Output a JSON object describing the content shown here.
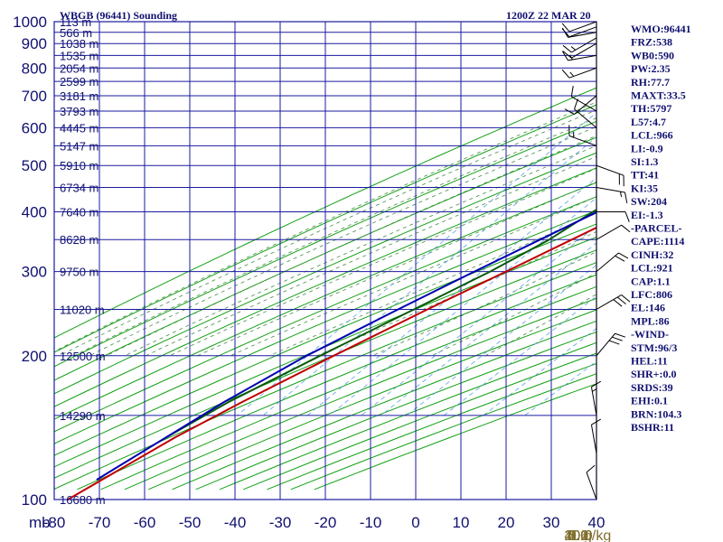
{
  "header": {
    "title": "WBGB (96441) Sounding",
    "valid_time": "1200Z 22 MAR 20"
  },
  "colors": {
    "grid": "#1a1aa0",
    "dry_adiabat": "#12a012",
    "moist_adiabat": "#4a8a4a",
    "mixing_ratio": "#5aa0e0",
    "temperature": "#c00000",
    "dewpoint": "#0a5a0a",
    "parcel": "#0000b0",
    "wind": "#000000",
    "mixing_label": "#807030"
  },
  "chart_data": {
    "type": "skew-t",
    "title": "WBGB (96441) Sounding",
    "pressure_unit_label": "mb",
    "pressure_range": [
      1000,
      100
    ],
    "temperature_range": [
      -80,
      40
    ],
    "pressure_ticks": [
      {
        "p": 100,
        "label": "100"
      },
      {
        "p": 200,
        "label": "200"
      },
      {
        "p": 300,
        "label": "300"
      },
      {
        "p": 400,
        "label": "400"
      },
      {
        "p": 500,
        "label": "500"
      },
      {
        "p": 600,
        "label": "600"
      },
      {
        "p": 700,
        "label": "700"
      },
      {
        "p": 800,
        "label": "800"
      },
      {
        "p": 900,
        "label": "900"
      },
      {
        "p": 1000,
        "label": "1000"
      }
    ],
    "temperature_ticks": [
      "-80",
      "-70",
      "-60",
      "-50",
      "-40",
      "-30",
      "-20",
      "-10",
      "0",
      "10",
      "20",
      "30",
      "40"
    ],
    "height_labels": [
      {
        "p": 100,
        "label": "16680 m"
      },
      {
        "p": 150,
        "label": "14290 m"
      },
      {
        "p": 200,
        "label": "12500 m"
      },
      {
        "p": 250,
        "label": "11020 m"
      },
      {
        "p": 300,
        "label": "9750 m"
      },
      {
        "p": 350,
        "label": "8628 m"
      },
      {
        "p": 400,
        "label": "7640 m"
      },
      {
        "p": 450,
        "label": "6734 m"
      },
      {
        "p": 500,
        "label": "5910 m"
      },
      {
        "p": 550,
        "label": "5147 m"
      },
      {
        "p": 600,
        "label": "4445 m"
      },
      {
        "p": 650,
        "label": "3793 m"
      },
      {
        "p": 700,
        "label": "3181 m"
      },
      {
        "p": 750,
        "label": "2599 m"
      },
      {
        "p": 800,
        "label": "2054 m"
      },
      {
        "p": 850,
        "label": "1535 m"
      },
      {
        "p": 900,
        "label": "1038 m"
      },
      {
        "p": 950,
        "label": "566 m"
      },
      {
        "p": 1000,
        "label": "113 m"
      }
    ],
    "mixing_ratio_labels": [
      "0.1",
      "0.2",
      "0.6",
      "1.0",
      "2.0",
      "3.0",
      "5.0",
      "10.0",
      "20.0",
      "40.0"
    ],
    "mixing_ratio_unit": "g/kg",
    "series": [
      {
        "key": "temperature",
        "points": [
          {
            "p": 1000,
            "t": 28.5
          },
          {
            "p": 975,
            "t": 24
          },
          {
            "p": 950,
            "t": 22.5
          },
          {
            "p": 925,
            "t": 20.5
          },
          {
            "p": 900,
            "t": 18
          },
          {
            "p": 850,
            "t": 14.5
          },
          {
            "p": 800,
            "t": 11
          },
          {
            "p": 750,
            "t": 7.5
          },
          {
            "p": 700,
            "t": 3.5
          },
          {
            "p": 650,
            "t": -0.5
          },
          {
            "p": 600,
            "t": -2
          },
          {
            "p": 550,
            "t": -3.5
          },
          {
            "p": 500,
            "t": -7
          },
          {
            "p": 450,
            "t": -12
          },
          {
            "p": 400,
            "t": -16.5
          },
          {
            "p": 350,
            "t": -23
          },
          {
            "p": 300,
            "t": -30.5
          },
          {
            "p": 250,
            "t": -39.5
          },
          {
            "p": 200,
            "t": -50
          },
          {
            "p": 160,
            "t": -60
          },
          {
            "p": 135,
            "t": -67
          },
          {
            "p": 100,
            "t": -77
          }
        ]
      },
      {
        "key": "dewpoint",
        "points": [
          {
            "p": 1000,
            "t": 25
          },
          {
            "p": 975,
            "t": 20.5
          },
          {
            "p": 950,
            "t": 19
          },
          {
            "p": 925,
            "t": 17.5
          },
          {
            "p": 900,
            "t": 15.5
          },
          {
            "p": 850,
            "t": 11.5
          },
          {
            "p": 800,
            "t": 7.5
          },
          {
            "p": 750,
            "t": 3.5
          },
          {
            "p": 700,
            "t": -1.5
          },
          {
            "p": 650,
            "t": -5.5
          },
          {
            "p": 600,
            "t": -10
          },
          {
            "p": 550,
            "t": -15
          },
          {
            "p": 500,
            "t": -18
          },
          {
            "p": 450,
            "t": -20
          },
          {
            "p": 400,
            "t": -24.5
          },
          {
            "p": 350,
            "t": -28
          },
          {
            "p": 300,
            "t": -34
          },
          {
            "p": 250,
            "t": -42.5
          },
          {
            "p": 200,
            "t": -53
          },
          {
            "p": 160,
            "t": -63
          },
          {
            "p": 135,
            "t": -69
          }
        ]
      },
      {
        "key": "parcel",
        "points": [
          {
            "p": 1000,
            "t": 28
          },
          {
            "p": 950,
            "t": 23.5
          },
          {
            "p": 900,
            "t": 21
          },
          {
            "p": 850,
            "t": 17.5
          },
          {
            "p": 800,
            "t": 14
          },
          {
            "p": 750,
            "t": 10
          },
          {
            "p": 700,
            "t": 6
          },
          {
            "p": 650,
            "t": 2
          },
          {
            "p": 600,
            "t": -2.5
          },
          {
            "p": 550,
            "t": -7
          },
          {
            "p": 500,
            "t": -12
          },
          {
            "p": 450,
            "t": -17.5
          },
          {
            "p": 400,
            "t": -23.5
          },
          {
            "p": 350,
            "t": -30
          },
          {
            "p": 300,
            "t": -37.5
          },
          {
            "p": 250,
            "t": -46
          },
          {
            "p": 200,
            "t": -56
          },
          {
            "p": 160,
            "t": -64
          },
          {
            "p": 135,
            "t": -69
          },
          {
            "p": 110,
            "t": -75
          }
        ]
      }
    ],
    "wind_barbs": [
      {
        "p": 1000,
        "dir": 250,
        "spd": 10
      },
      {
        "p": 975,
        "dir": 250,
        "spd": 10
      },
      {
        "p": 950,
        "dir": 260,
        "spd": 10
      },
      {
        "p": 925,
        "dir": 240,
        "spd": 15
      },
      {
        "p": 900,
        "dir": 240,
        "spd": 10
      },
      {
        "p": 850,
        "dir": 260,
        "spd": 15
      },
      {
        "p": 800,
        "dir": 250,
        "spd": 15
      },
      {
        "p": 700,
        "dir": 230,
        "spd": 10
      },
      {
        "p": 650,
        "dir": 300,
        "spd": 10
      },
      {
        "p": 600,
        "dir": 310,
        "spd": 10
      },
      {
        "p": 550,
        "dir": 290,
        "spd": 15
      },
      {
        "p": 500,
        "dir": 110,
        "spd": 20
      },
      {
        "p": 450,
        "dir": 100,
        "spd": 15
      },
      {
        "p": 400,
        "dir": 90,
        "spd": 10
      },
      {
        "p": 350,
        "dir": 60,
        "spd": 10
      },
      {
        "p": 300,
        "dir": 50,
        "spd": 20
      },
      {
        "p": 250,
        "dir": 60,
        "spd": 30
      },
      {
        "p": 200,
        "dir": 40,
        "spd": 30
      },
      {
        "p": 150,
        "dir": 350,
        "spd": 15
      },
      {
        "p": 125,
        "dir": 350,
        "spd": 10
      },
      {
        "p": 100,
        "dir": 340,
        "spd": 10
      }
    ]
  },
  "indices": [
    "WMO:96441",
    "FRZ:538",
    "WB0:590",
    "PW:2.35",
    "RH:77.7",
    "MAXT:33.5",
    "TH:5797",
    "L57:4.7",
    "LCL:966",
    "LI:-0.9",
    "SI:1.3",
    "TT:41",
    "KI:35",
    "SW:204",
    "EI:-1.3",
    "-PARCEL-",
    "CAPE:1114",
    "CINH:32",
    "LCL:921",
    "CAP:1.1",
    "LFC:806",
    "EL:146",
    "MPL:86",
    "-WIND-",
    "STM:96/3",
    "HEL:11",
    "SHR+:0.0",
    "SRDS:39",
    "EHI:0.1",
    "BRN:104.3",
    "BSHR:11"
  ]
}
